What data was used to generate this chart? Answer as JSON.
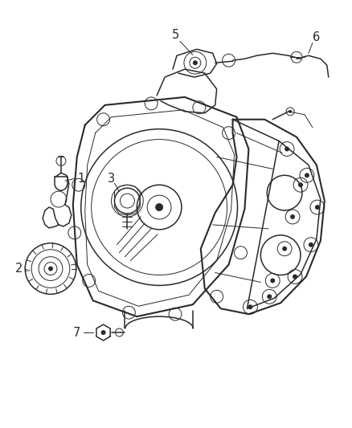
{
  "background_color": "#ffffff",
  "line_color": "#2a2a2a",
  "label_color": "#2a2a2a",
  "fig_width": 4.38,
  "fig_height": 5.33,
  "dpi": 100,
  "label_fontsize": 10.5,
  "lw_main": 1.1,
  "lw_thin": 0.7,
  "lw_thick": 1.5
}
